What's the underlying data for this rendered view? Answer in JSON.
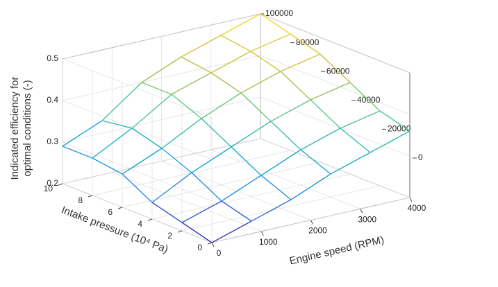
{
  "chart_data": {
    "type": "mesh",
    "x_label": "Engine speed (RPM)",
    "y_label": "Intake pressure (10⁴ Pa)",
    "z_label": [
      "Indicated efficiency for",
      "optimal conditions (-)"
    ],
    "x": [
      0,
      800,
      1600,
      2400,
      3200,
      4000
    ],
    "y": [
      0,
      2,
      4,
      6,
      8,
      10
    ],
    "z": [
      [
        0.2,
        0.23,
        0.26,
        0.3,
        0.33,
        0.36
      ],
      [
        0.22,
        0.25,
        0.29,
        0.33,
        0.36,
        0.38
      ],
      [
        0.24,
        0.29,
        0.33,
        0.37,
        0.4,
        0.42
      ],
      [
        0.28,
        0.32,
        0.37,
        0.41,
        0.44,
        0.46
      ],
      [
        0.29,
        0.34,
        0.4,
        0.43,
        0.46,
        0.48
      ],
      [
        0.29,
        0.33,
        0.4,
        0.44,
        0.47,
        0.5
      ]
    ],
    "xlim": [
      0,
      4000
    ],
    "ylim": [
      0,
      10
    ],
    "zlim": [
      0.2,
      0.5
    ],
    "xticks": [
      0,
      1000,
      2000,
      3000,
      4000
    ],
    "yticks": [
      0,
      2,
      4,
      6,
      8,
      10
    ],
    "zticks": [
      0.2,
      0.3,
      0.4,
      0.5
    ],
    "colorbar_ticks": [
      0,
      20000,
      40000,
      60000,
      80000,
      100000
    ],
    "grid": true
  }
}
